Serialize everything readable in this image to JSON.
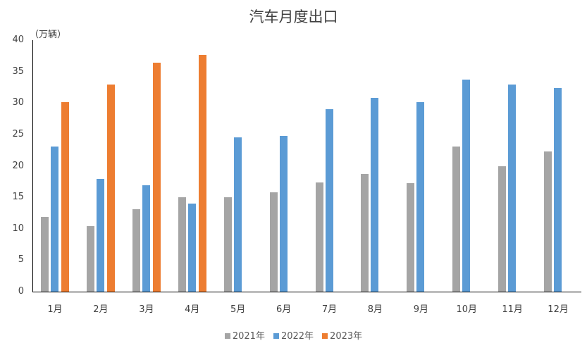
{
  "chart_data": {
    "type": "bar",
    "title": "汽车月度出口",
    "ylabel": "（万辆）",
    "xlabel": "",
    "ylim": [
      0,
      40
    ],
    "yticks": [
      0,
      5,
      10,
      15,
      20,
      25,
      30,
      35,
      40
    ],
    "grid": false,
    "legend_position": "bottom",
    "categories": [
      "1月",
      "2月",
      "3月",
      "4月",
      "5月",
      "6月",
      "7月",
      "8月",
      "9月",
      "10月",
      "11月",
      "12月"
    ],
    "series": [
      {
        "name": "2021年",
        "color": "#A5A5A5",
        "values": [
          11.9,
          10.4,
          13.1,
          15.0,
          15.0,
          15.8,
          17.4,
          18.7,
          17.3,
          23.1,
          19.9,
          22.3
        ]
      },
      {
        "name": "2022年",
        "color": "#5B9BD5",
        "values": [
          23.1,
          17.9,
          16.9,
          14.0,
          24.5,
          24.8,
          29.0,
          30.8,
          30.1,
          33.7,
          32.9,
          32.4
        ]
      },
      {
        "name": "2023年",
        "color": "#ED7D31",
        "values": [
          30.1,
          32.9,
          36.4,
          37.6,
          null,
          null,
          null,
          null,
          null,
          null,
          null,
          null
        ]
      }
    ]
  }
}
